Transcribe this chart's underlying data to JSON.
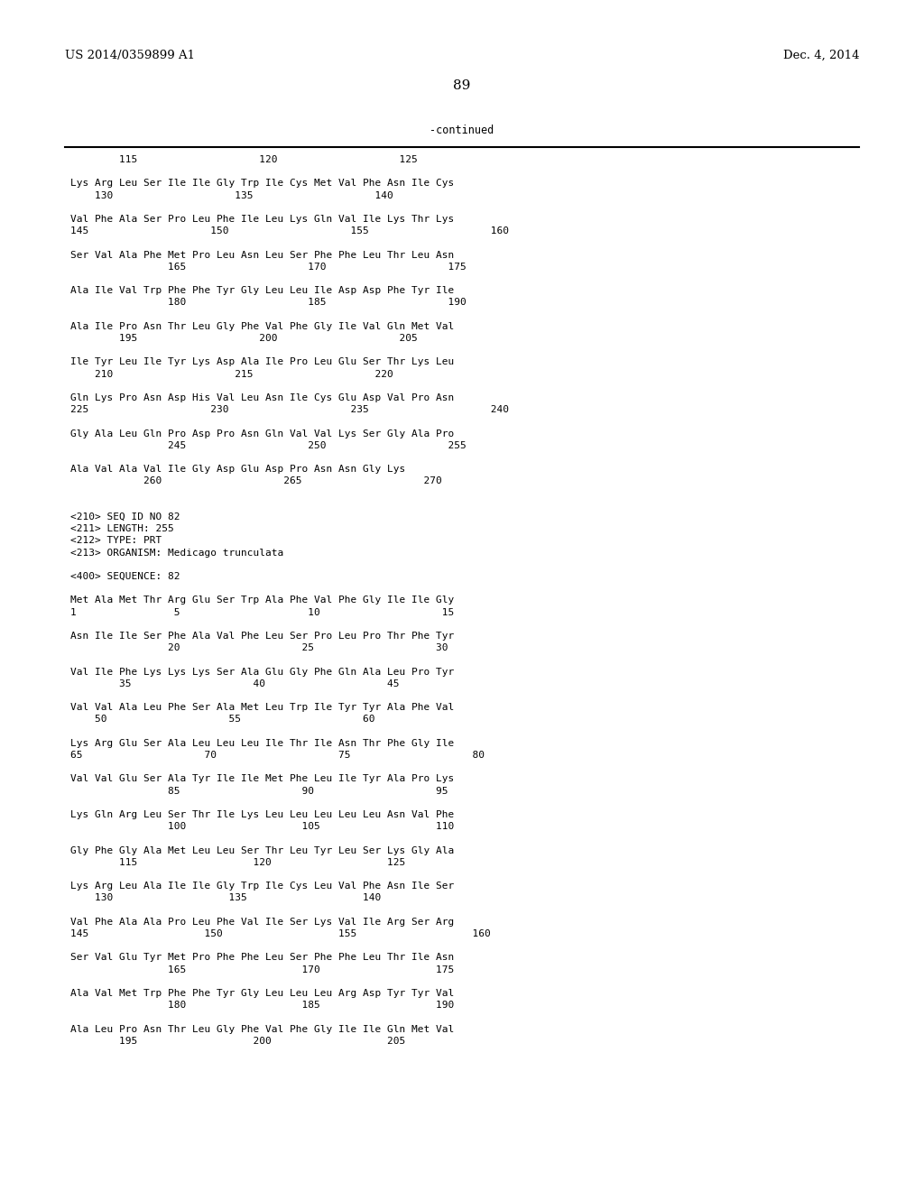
{
  "header_left": "US 2014/0359899 A1",
  "header_right": "Dec. 4, 2014",
  "page_number": "89",
  "continued_label": "-continued",
  "background_color": "#ffffff",
  "text_color": "#000000",
  "content_lines": [
    "        115                    120                    125",
    "",
    "Lys Arg Leu Ser Ile Ile Gly Trp Ile Cys Met Val Phe Asn Ile Cys",
    "    130                    135                    140",
    "",
    "Val Phe Ala Ser Pro Leu Phe Ile Leu Lys Gln Val Ile Lys Thr Lys",
    "145                    150                    155                    160",
    "",
    "Ser Val Ala Phe Met Pro Leu Asn Leu Ser Phe Phe Leu Thr Leu Asn",
    "                165                    170                    175",
    "",
    "Ala Ile Val Trp Phe Phe Tyr Gly Leu Leu Ile Asp Asp Phe Tyr Ile",
    "                180                    185                    190",
    "",
    "Ala Ile Pro Asn Thr Leu Gly Phe Val Phe Gly Ile Val Gln Met Val",
    "        195                    200                    205",
    "",
    "Ile Tyr Leu Ile Tyr Lys Asp Ala Ile Pro Leu Glu Ser Thr Lys Leu",
    "    210                    215                    220",
    "",
    "Gln Lys Pro Asn Asp His Val Leu Asn Ile Cys Glu Asp Val Pro Asn",
    "225                    230                    235                    240",
    "",
    "Gly Ala Leu Gln Pro Asp Pro Asn Gln Val Val Lys Ser Gly Ala Pro",
    "                245                    250                    255",
    "",
    "Ala Val Ala Val Ile Gly Asp Glu Asp Pro Asn Asn Gly Lys",
    "            260                    265                    270",
    "",
    "",
    "<210> SEQ ID NO 82",
    "<211> LENGTH: 255",
    "<212> TYPE: PRT",
    "<213> ORGANISM: Medicago trunculata",
    "",
    "<400> SEQUENCE: 82",
    "",
    "Met Ala Met Thr Arg Glu Ser Trp Ala Phe Val Phe Gly Ile Ile Gly",
    "1                5                     10                    15",
    "",
    "Asn Ile Ile Ser Phe Ala Val Phe Leu Ser Pro Leu Pro Thr Phe Tyr",
    "                20                    25                    30",
    "",
    "Val Ile Phe Lys Lys Lys Ser Ala Glu Gly Phe Gln Ala Leu Pro Tyr",
    "        35                    40                    45",
    "",
    "Val Val Ala Leu Phe Ser Ala Met Leu Trp Ile Tyr Tyr Ala Phe Val",
    "    50                    55                    60",
    "",
    "Lys Arg Glu Ser Ala Leu Leu Leu Ile Thr Ile Asn Thr Phe Gly Ile",
    "65                    70                    75                    80",
    "",
    "Val Val Glu Ser Ala Tyr Ile Ile Met Phe Leu Ile Tyr Ala Pro Lys",
    "                85                    90                    95",
    "",
    "Lys Gln Arg Leu Ser Thr Ile Lys Leu Leu Leu Leu Leu Asn Val Phe",
    "                100                   105                   110",
    "",
    "Gly Phe Gly Ala Met Leu Leu Ser Thr Leu Tyr Leu Ser Lys Gly Ala",
    "        115                   120                   125",
    "",
    "Lys Arg Leu Ala Ile Ile Gly Trp Ile Cys Leu Val Phe Asn Ile Ser",
    "    130                   135                   140",
    "",
    "Val Phe Ala Ala Pro Leu Phe Val Ile Ser Lys Val Ile Arg Ser Arg",
    "145                   150                   155                   160",
    "",
    "Ser Val Glu Tyr Met Pro Phe Phe Leu Ser Phe Phe Leu Thr Ile Asn",
    "                165                   170                   175",
    "",
    "Ala Val Met Trp Phe Phe Tyr Gly Leu Leu Leu Arg Asp Tyr Tyr Val",
    "                180                   185                   190",
    "",
    "Ala Leu Pro Asn Thr Leu Gly Phe Val Phe Gly Ile Ile Gln Met Val",
    "        195                   200                   205"
  ]
}
